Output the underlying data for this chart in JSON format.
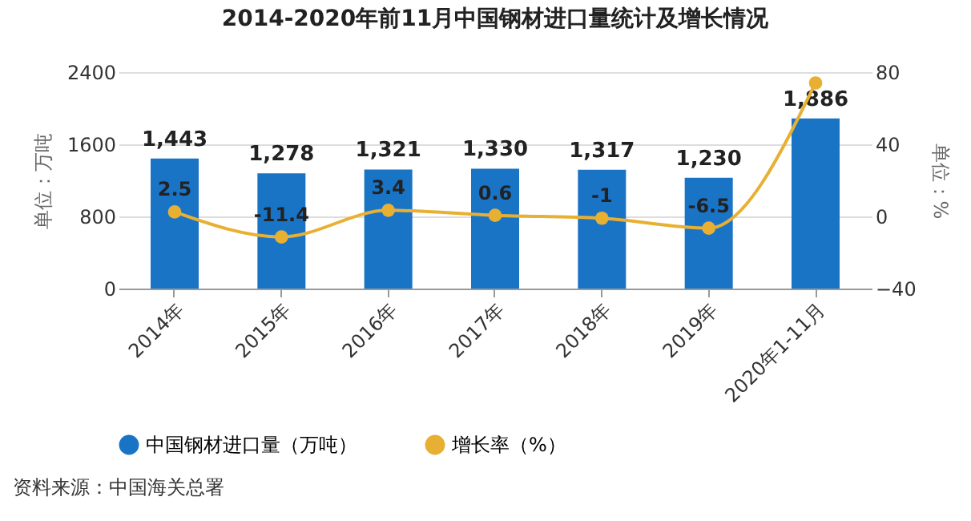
{
  "chart_data": {
    "type": "bar",
    "title": "2014-2020年前11月中国钢材进口量统计及增长情况",
    "categories": [
      "2014年",
      "2015年",
      "2016年",
      "2017年",
      "2018年",
      "2019年",
      "2020年1-11月"
    ],
    "series": [
      {
        "name": "中国钢材进口量（万吨）",
        "color": "#1a74c6",
        "values": [
          1443,
          1278,
          1321,
          1330,
          1317,
          1230,
          1886
        ],
        "value_labels": [
          "1,443",
          "1,278",
          "1,321",
          "1,330",
          "1,317",
          "1,230",
          "1,886"
        ]
      },
      {
        "name": "增长率（%）",
        "type": "line",
        "axis": "y2",
        "color": "#e8b033",
        "values": [
          2.5,
          -11.4,
          3.4,
          0.6,
          -1,
          -6.5,
          74
        ],
        "value_labels": [
          "2.5",
          "-11.4",
          "3.4",
          "0.6",
          "-1",
          "-6.5",
          null
        ]
      }
    ],
    "ylabel": "单位：万吨",
    "y2label": "单位：%",
    "ylim": [
      0,
      2400
    ],
    "yticks": [
      0,
      800,
      1600,
      2400
    ],
    "y2lim": [
      -40,
      80
    ],
    "y2ticks": [
      -40,
      0,
      40,
      80
    ],
    "grid": "y",
    "legend": "bottom",
    "marker": "circle",
    "annotations": [
      "资料来源：中国海关总署"
    ]
  }
}
